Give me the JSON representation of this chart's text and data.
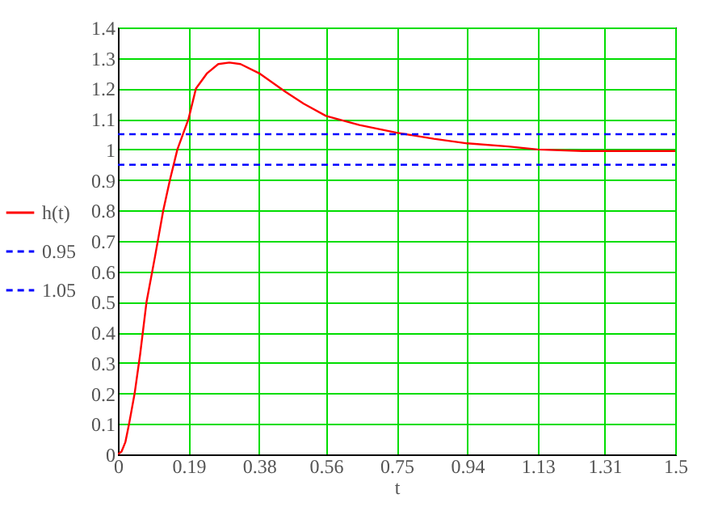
{
  "chart_data": {
    "type": "line",
    "xlabel": "t",
    "x": [
      0,
      0.01,
      0.02,
      0.03,
      0.045,
      0.06,
      0.077,
      0.1,
      0.122,
      0.14,
      0.16,
      0.19,
      0.21,
      0.24,
      0.27,
      0.3,
      0.33,
      0.38,
      0.45,
      0.5,
      0.56,
      0.65,
      0.75,
      0.85,
      0.94,
      1.05,
      1.13,
      1.25,
      1.5
    ],
    "series": [
      {
        "name": "h(t)",
        "color": "#ff0000",
        "line_style": "solid",
        "values": [
          0,
          0.01,
          0.04,
          0.1,
          0.2,
          0.33,
          0.5,
          0.65,
          0.8,
          0.9,
          1.0,
          1.1,
          1.2,
          1.25,
          1.28,
          1.285,
          1.28,
          1.25,
          1.19,
          1.15,
          1.11,
          1.08,
          1.055,
          1.035,
          1.02,
          1.01,
          1.0,
          0.995,
          0.995
        ]
      },
      {
        "name": "0.95",
        "color": "#0000ff",
        "line_style": "dashed",
        "values": [
          0.95,
          0.95,
          0.95,
          0.95,
          0.95,
          0.95,
          0.95,
          0.95,
          0.95,
          0.95,
          0.95,
          0.95,
          0.95,
          0.95,
          0.95,
          0.95,
          0.95,
          0.95,
          0.95,
          0.95,
          0.95,
          0.95,
          0.95,
          0.95,
          0.95,
          0.95,
          0.95,
          0.95,
          0.95
        ]
      },
      {
        "name": "1.05",
        "color": "#0000ff",
        "line_style": "dashed",
        "values": [
          1.05,
          1.05,
          1.05,
          1.05,
          1.05,
          1.05,
          1.05,
          1.05,
          1.05,
          1.05,
          1.05,
          1.05,
          1.05,
          1.05,
          1.05,
          1.05,
          1.05,
          1.05,
          1.05,
          1.05,
          1.05,
          1.05,
          1.05,
          1.05,
          1.05,
          1.05,
          1.05,
          1.05,
          1.05
        ]
      }
    ],
    "xlim": [
      0,
      1.5
    ],
    "xticks": [
      0,
      0.19,
      0.38,
      0.56,
      0.75,
      0.94,
      1.13,
      1.31,
      1.5
    ],
    "ylim": [
      0,
      1.4
    ],
    "yticks": [
      0,
      0.1,
      0.2,
      0.3,
      0.4,
      0.5,
      0.6,
      0.7,
      0.8,
      0.9,
      1,
      1.1,
      1.2,
      1.3,
      1.4
    ],
    "grid": true,
    "legend": "left",
    "marker": "none"
  }
}
